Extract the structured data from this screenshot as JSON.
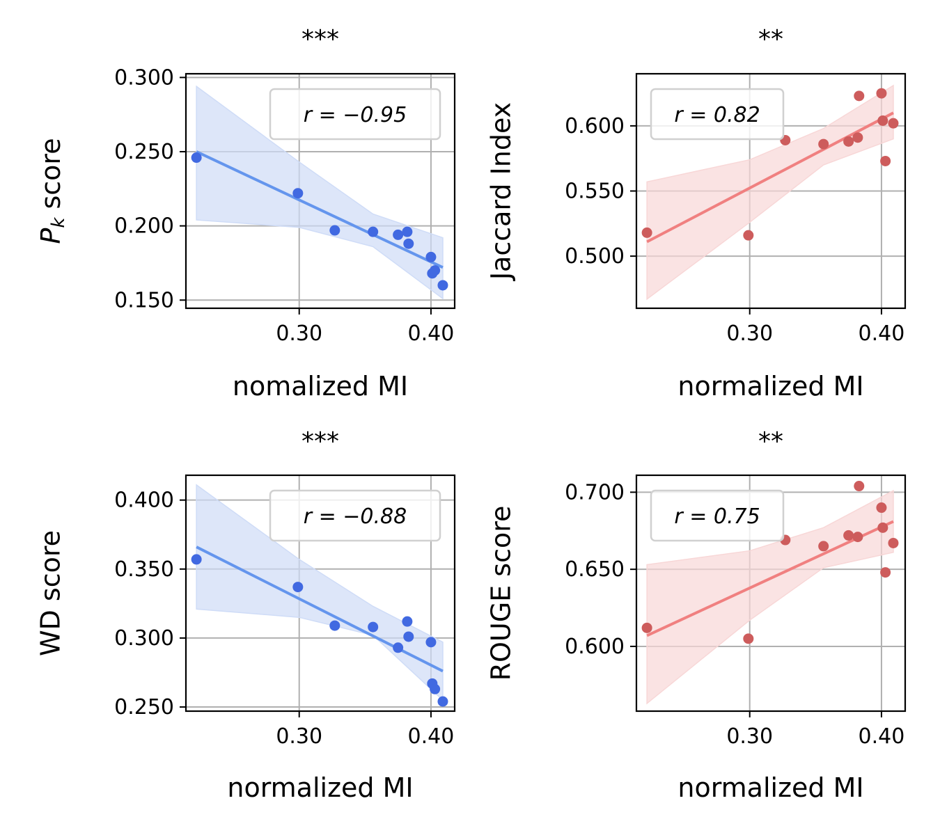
{
  "chart_data": [
    {
      "type": "scatter",
      "title": "***",
      "xlabel": "nomalized MI",
      "ylabel": "P_k score",
      "ylabel_main": "P",
      "ylabel_sub": "k",
      "ylabel_rest": " score",
      "legend": "r = −0.95",
      "legend_position": "top-right",
      "grid": true,
      "color": "#4169e1",
      "fit_color": "#6495ed",
      "band_color": "#cfdcf7",
      "xlim": [
        0.214,
        0.418
      ],
      "ylim": [
        0.1445,
        0.3025
      ],
      "xticks": [
        0.3,
        0.4
      ],
      "xtick_labels": [
        "0.30",
        "0.40"
      ],
      "yticks": [
        0.15,
        0.2,
        0.25,
        0.3
      ],
      "ytick_labels": [
        "0.150",
        "0.200",
        "0.250",
        "0.300"
      ],
      "x": [
        0.222,
        0.299,
        0.327,
        0.356,
        0.375,
        0.382,
        0.383,
        0.4,
        0.401,
        0.403,
        0.409
      ],
      "y": [
        0.246,
        0.222,
        0.197,
        0.196,
        0.194,
        0.196,
        0.188,
        0.179,
        0.168,
        0.17,
        0.16
      ],
      "fit": {
        "x": [
          0.222,
          0.409
        ],
        "y": [
          0.25,
          0.172
        ]
      },
      "band": {
        "x": [
          0.222,
          0.3,
          0.356,
          0.409
        ],
        "lower": [
          0.204,
          0.199,
          0.186,
          0.151
        ],
        "upper": [
          0.294,
          0.243,
          0.208,
          0.192
        ]
      }
    },
    {
      "type": "scatter",
      "title": "**",
      "xlabel": "normalized MI",
      "ylabel": "Jaccard Index",
      "legend": "r = 0.82",
      "legend_position": "top-left",
      "grid": true,
      "color": "#cd5c5c",
      "fit_color": "#f08080",
      "band_color": "#f8d7d7",
      "xlim": [
        0.214,
        0.418
      ],
      "ylim": [
        0.46,
        0.64
      ],
      "xticks": [
        0.3,
        0.4
      ],
      "xtick_labels": [
        "0.30",
        "0.40"
      ],
      "yticks": [
        0.5,
        0.55,
        0.6
      ],
      "ytick_labels": [
        "0.500",
        "0.550",
        "0.600"
      ],
      "x": [
        0.222,
        0.299,
        0.327,
        0.356,
        0.375,
        0.382,
        0.383,
        0.4,
        0.401,
        0.403,
        0.409
      ],
      "y": [
        0.518,
        0.516,
        0.589,
        0.586,
        0.588,
        0.591,
        0.623,
        0.625,
        0.604,
        0.573,
        0.602
      ],
      "fit": {
        "x": [
          0.222,
          0.409
        ],
        "y": [
          0.511,
          0.61
        ]
      },
      "band": {
        "x": [
          0.222,
          0.3,
          0.356,
          0.409
        ],
        "lower": [
          0.467,
          0.526,
          0.57,
          0.59
        ],
        "upper": [
          0.557,
          0.574,
          0.598,
          0.631
        ]
      }
    },
    {
      "type": "scatter",
      "title": "***",
      "xlabel": "normalized MI",
      "ylabel": "WD score",
      "legend": "r = −0.88",
      "legend_position": "top-right",
      "grid": true,
      "color": "#4169e1",
      "fit_color": "#6495ed",
      "band_color": "#cfdcf7",
      "xlim": [
        0.214,
        0.418
      ],
      "ylim": [
        0.247,
        0.418
      ],
      "xticks": [
        0.3,
        0.4
      ],
      "xtick_labels": [
        "0.30",
        "0.40"
      ],
      "yticks": [
        0.25,
        0.3,
        0.35,
        0.4
      ],
      "ytick_labels": [
        "0.250",
        "0.300",
        "0.350",
        "0.400"
      ],
      "x": [
        0.222,
        0.299,
        0.327,
        0.356,
        0.375,
        0.382,
        0.383,
        0.4,
        0.401,
        0.403,
        0.409
      ],
      "y": [
        0.357,
        0.337,
        0.309,
        0.308,
        0.293,
        0.312,
        0.301,
        0.297,
        0.267,
        0.263,
        0.254
      ],
      "fit": {
        "x": [
          0.222,
          0.409
        ],
        "y": [
          0.366,
          0.276
        ]
      },
      "band": {
        "x": [
          0.222,
          0.3,
          0.356,
          0.409
        ],
        "lower": [
          0.321,
          0.315,
          0.302,
          0.255
        ],
        "upper": [
          0.411,
          0.357,
          0.323,
          0.297
        ]
      }
    },
    {
      "type": "scatter",
      "title": "**",
      "xlabel": "normalized MI",
      "ylabel": "ROUGE score",
      "legend": "r = 0.75",
      "legend_position": "top-left",
      "grid": true,
      "color": "#cd5c5c",
      "fit_color": "#f08080",
      "band_color": "#f8d7d7",
      "xlim": [
        0.214,
        0.418
      ],
      "ylim": [
        0.558,
        0.711
      ],
      "xticks": [
        0.3,
        0.4
      ],
      "xtick_labels": [
        "0.30",
        "0.40"
      ],
      "yticks": [
        0.6,
        0.65,
        0.7
      ],
      "ytick_labels": [
        "0.600",
        "0.650",
        "0.700"
      ],
      "x": [
        0.222,
        0.299,
        0.327,
        0.356,
        0.375,
        0.382,
        0.383,
        0.4,
        0.401,
        0.403,
        0.409
      ],
      "y": [
        0.612,
        0.605,
        0.669,
        0.665,
        0.672,
        0.671,
        0.704,
        0.69,
        0.677,
        0.648,
        0.667
      ],
      "fit": {
        "x": [
          0.222,
          0.409
        ],
        "y": [
          0.607,
          0.681
        ]
      },
      "band": {
        "x": [
          0.222,
          0.3,
          0.356,
          0.409
        ],
        "lower": [
          0.563,
          0.617,
          0.651,
          0.661
        ],
        "upper": [
          0.653,
          0.662,
          0.677,
          0.701
        ]
      }
    }
  ]
}
